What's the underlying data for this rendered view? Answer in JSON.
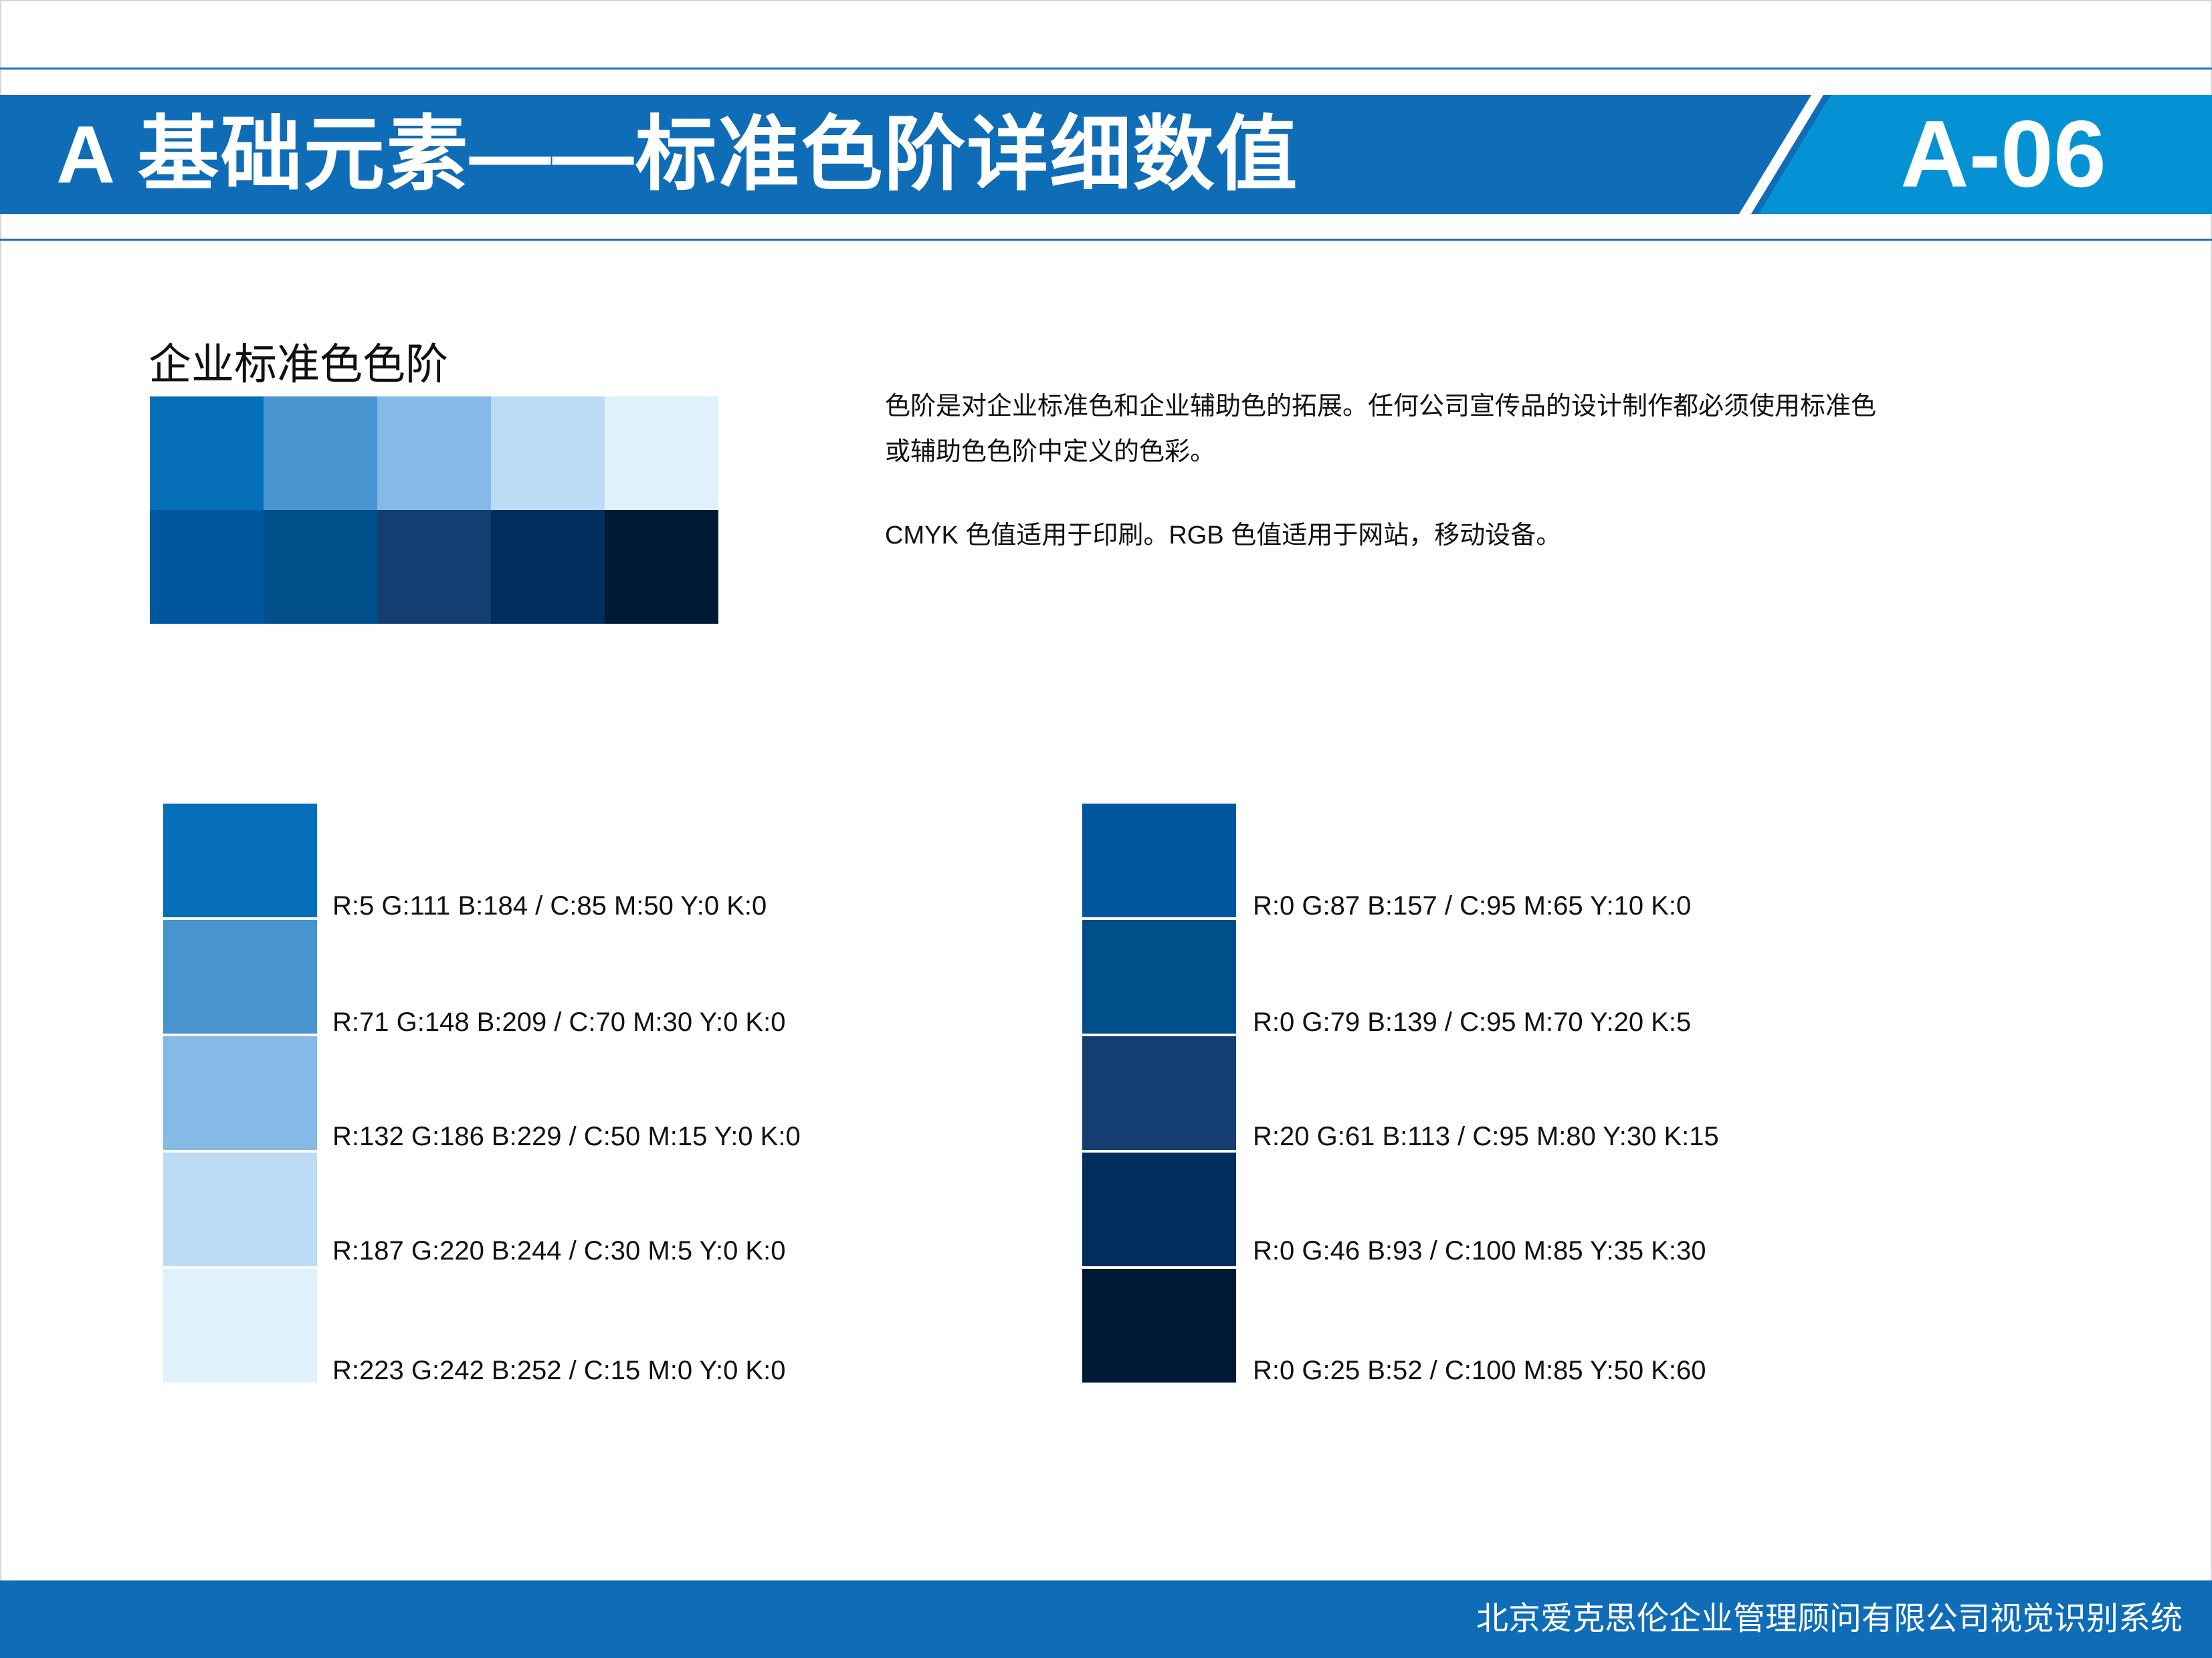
{
  "header": {
    "title": "A 基础元素——标准色阶详细数值",
    "page_code": "A-06"
  },
  "section": {
    "title": "企业标准色色阶"
  },
  "description": {
    "line1": "色阶是对企业标准色和企业辅助色的拓展。任何公司宣传品的设计制作都必须使用标准色",
    "line2": "或辅助色色阶中定义的色彩。",
    "line3": "CMYK 色值适用于印刷。RGB 色值适用于网站，移动设备。"
  },
  "colors": {
    "accent": "#0f6cb6",
    "accent_light": "#0492d5"
  },
  "light_scale": [
    {
      "color": "#056fb8",
      "label": "R:5 G:111 B:184  /  C:85 M:50 Y:0 K:0"
    },
    {
      "color": "#4794d1",
      "label": "R:71 G:148 B:209  /  C:70 M:30 Y:0 K:0"
    },
    {
      "color": "#84bae5",
      "label": "R:132 G:186 B:229  /  C:50 M:15 Y:0 K:0"
    },
    {
      "color": "#bbdcf4",
      "label": "R:187 G:220 B:244  /  C:30 M:5 Y:0 K:0"
    },
    {
      "color": "#dff2fc",
      "label": "R:223 G:242 B:252  /  C:15 M:0 Y:0 K:0"
    }
  ],
  "dark_scale": [
    {
      "color": "#00579d",
      "label": "R:0 G:87 B:157  /  C:95 M:65 Y:10 K:0"
    },
    {
      "color": "#004f8b",
      "label": "R:0 G:79 B:139  /  C:95 M:70 Y:20 K:5"
    },
    {
      "color": "#143d71",
      "label": "R:20 G:61 B:113  /  C:95 M:80 Y:30 K:15"
    },
    {
      "color": "#002e5d",
      "label": "R:0 G:46 B:93  /  C:100 M:85 Y:35 K:30"
    },
    {
      "color": "#001934",
      "label": "R:0 G:25 B:52  /  C:100 M:85 Y:50 K:60"
    }
  ],
  "footer": {
    "text": "北京爱克思伦企业管理顾问有限公司视觉识别系统"
  }
}
